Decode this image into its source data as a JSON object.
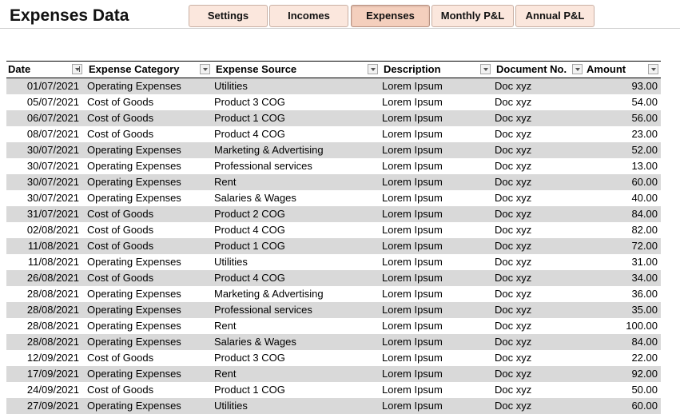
{
  "title": "Expenses Data",
  "tabs": [
    {
      "label": "Settings",
      "active": false
    },
    {
      "label": "Incomes",
      "active": false
    },
    {
      "label": "Expenses",
      "active": true
    },
    {
      "label": "Monthly P&L",
      "active": false
    },
    {
      "label": "Annual P&L",
      "active": false
    }
  ],
  "table": {
    "headers": {
      "date": "Date",
      "category": "Expense Category",
      "source": "Expense Source",
      "description": "Description",
      "document": "Document No.",
      "amount": "Amount"
    },
    "rows": [
      {
        "date": "01/07/2021",
        "category": "Operating Expenses",
        "source": "Utilities",
        "description": "Lorem Ipsum",
        "document": "Doc xyz",
        "amount": "93.00"
      },
      {
        "date": "05/07/2021",
        "category": "Cost of Goods",
        "source": "Product 3 COG",
        "description": "Lorem Ipsum",
        "document": "Doc xyz",
        "amount": "54.00"
      },
      {
        "date": "06/07/2021",
        "category": "Cost of Goods",
        "source": "Product 1 COG",
        "description": "Lorem Ipsum",
        "document": "Doc xyz",
        "amount": "56.00"
      },
      {
        "date": "08/07/2021",
        "category": "Cost of Goods",
        "source": "Product 4 COG",
        "description": "Lorem Ipsum",
        "document": "Doc xyz",
        "amount": "23.00"
      },
      {
        "date": "30/07/2021",
        "category": "Operating Expenses",
        "source": "Marketing & Advertising",
        "description": "Lorem Ipsum",
        "document": "Doc xyz",
        "amount": "52.00"
      },
      {
        "date": "30/07/2021",
        "category": "Operating Expenses",
        "source": "Professional services",
        "description": "Lorem Ipsum",
        "document": "Doc xyz",
        "amount": "13.00"
      },
      {
        "date": "30/07/2021",
        "category": "Operating Expenses",
        "source": "Rent",
        "description": "Lorem Ipsum",
        "document": "Doc xyz",
        "amount": "60.00"
      },
      {
        "date": "30/07/2021",
        "category": "Operating Expenses",
        "source": "Salaries & Wages",
        "description": "Lorem Ipsum",
        "document": "Doc xyz",
        "amount": "40.00"
      },
      {
        "date": "31/07/2021",
        "category": "Cost of Goods",
        "source": "Product 2 COG",
        "description": "Lorem Ipsum",
        "document": "Doc xyz",
        "amount": "84.00"
      },
      {
        "date": "02/08/2021",
        "category": "Cost of Goods",
        "source": "Product 4 COG",
        "description": "Lorem Ipsum",
        "document": "Doc xyz",
        "amount": "82.00"
      },
      {
        "date": "11/08/2021",
        "category": "Cost of Goods",
        "source": "Product 1 COG",
        "description": "Lorem Ipsum",
        "document": "Doc xyz",
        "amount": "72.00"
      },
      {
        "date": "11/08/2021",
        "category": "Operating Expenses",
        "source": "Utilities",
        "description": "Lorem Ipsum",
        "document": "Doc xyz",
        "amount": "31.00"
      },
      {
        "date": "26/08/2021",
        "category": "Cost of Goods",
        "source": "Product 4 COG",
        "description": "Lorem Ipsum",
        "document": "Doc xyz",
        "amount": "34.00"
      },
      {
        "date": "28/08/2021",
        "category": "Operating Expenses",
        "source": "Marketing & Advertising",
        "description": "Lorem Ipsum",
        "document": "Doc xyz",
        "amount": "36.00"
      },
      {
        "date": "28/08/2021",
        "category": "Operating Expenses",
        "source": "Professional services",
        "description": "Lorem Ipsum",
        "document": "Doc xyz",
        "amount": "35.00"
      },
      {
        "date": "28/08/2021",
        "category": "Operating Expenses",
        "source": "Rent",
        "description": "Lorem Ipsum",
        "document": "Doc xyz",
        "amount": "100.00"
      },
      {
        "date": "28/08/2021",
        "category": "Operating Expenses",
        "source": "Salaries & Wages",
        "description": "Lorem Ipsum",
        "document": "Doc xyz",
        "amount": "84.00"
      },
      {
        "date": "12/09/2021",
        "category": "Cost of Goods",
        "source": "Product 3 COG",
        "description": "Lorem Ipsum",
        "document": "Doc xyz",
        "amount": "22.00"
      },
      {
        "date": "17/09/2021",
        "category": "Operating Expenses",
        "source": "Rent",
        "description": "Lorem Ipsum",
        "document": "Doc xyz",
        "amount": "92.00"
      },
      {
        "date": "24/09/2021",
        "category": "Cost of Goods",
        "source": "Product 1 COG",
        "description": "Lorem Ipsum",
        "document": "Doc xyz",
        "amount": "50.00"
      },
      {
        "date": "27/09/2021",
        "category": "Operating Expenses",
        "source": "Utilities",
        "description": "Lorem Ipsum",
        "document": "Doc xyz",
        "amount": "60.00"
      }
    ]
  },
  "colors": {
    "tab_background": "#fbe7dd",
    "tab_active_background": "#f4cfbd",
    "row_band": "#d9d9d9"
  },
  "icons": {
    "filter": "filter-dropdown-icon",
    "sorted_filter": "sort-ascending-filter-icon"
  }
}
